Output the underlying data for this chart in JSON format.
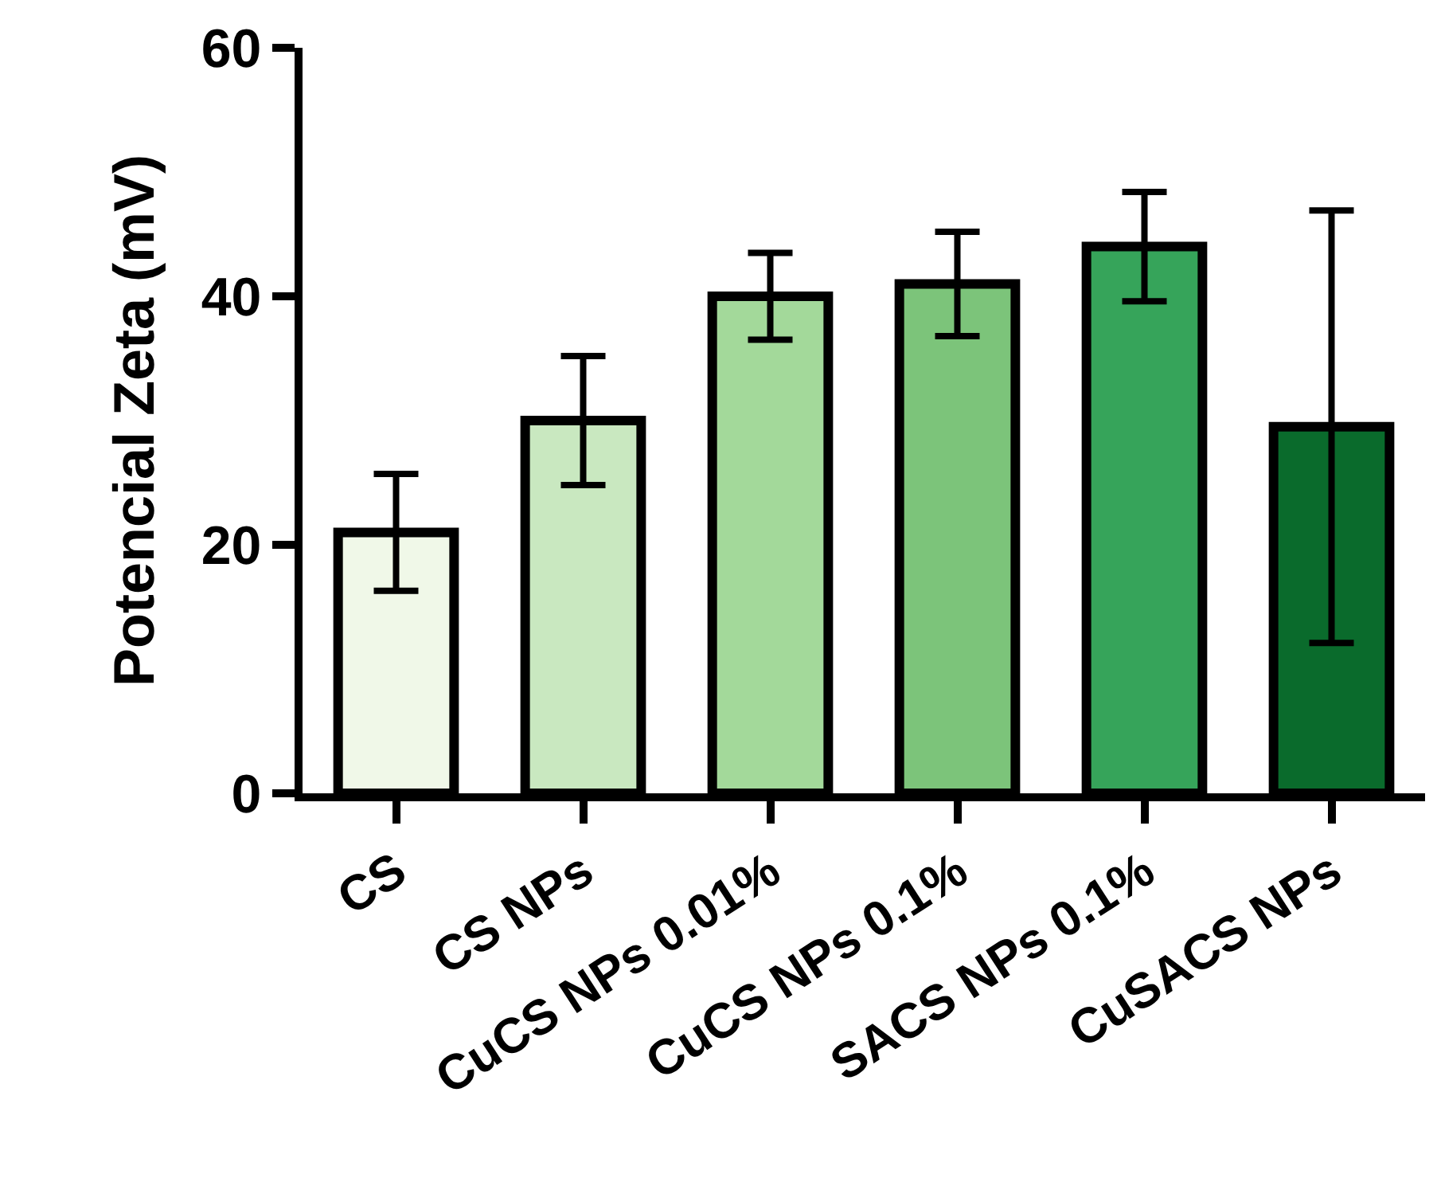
{
  "chart_data": {
    "type": "bar",
    "ylabel": "Potencial Zeta (mV)",
    "categories": [
      "CS",
      "CS NPs",
      "CuCS NPs 0.01%",
      "CuCS NPs 0.1%",
      "SACS NPs 0.1%",
      "CuSACS NPs"
    ],
    "values": [
      21,
      30,
      40,
      41,
      44,
      29.5
    ],
    "errors": [
      4.7,
      5.2,
      3.5,
      4.2,
      4.4,
      17.4
    ],
    "colors": [
      "#f0f8e8",
      "#c9e8c0",
      "#a3d99a",
      "#7cc47a",
      "#36a45a",
      "#0a6b2c"
    ],
    "ylim": [
      0,
      60
    ],
    "yticks": [
      0,
      20,
      40,
      60
    ],
    "grid": false,
    "legend": false
  }
}
